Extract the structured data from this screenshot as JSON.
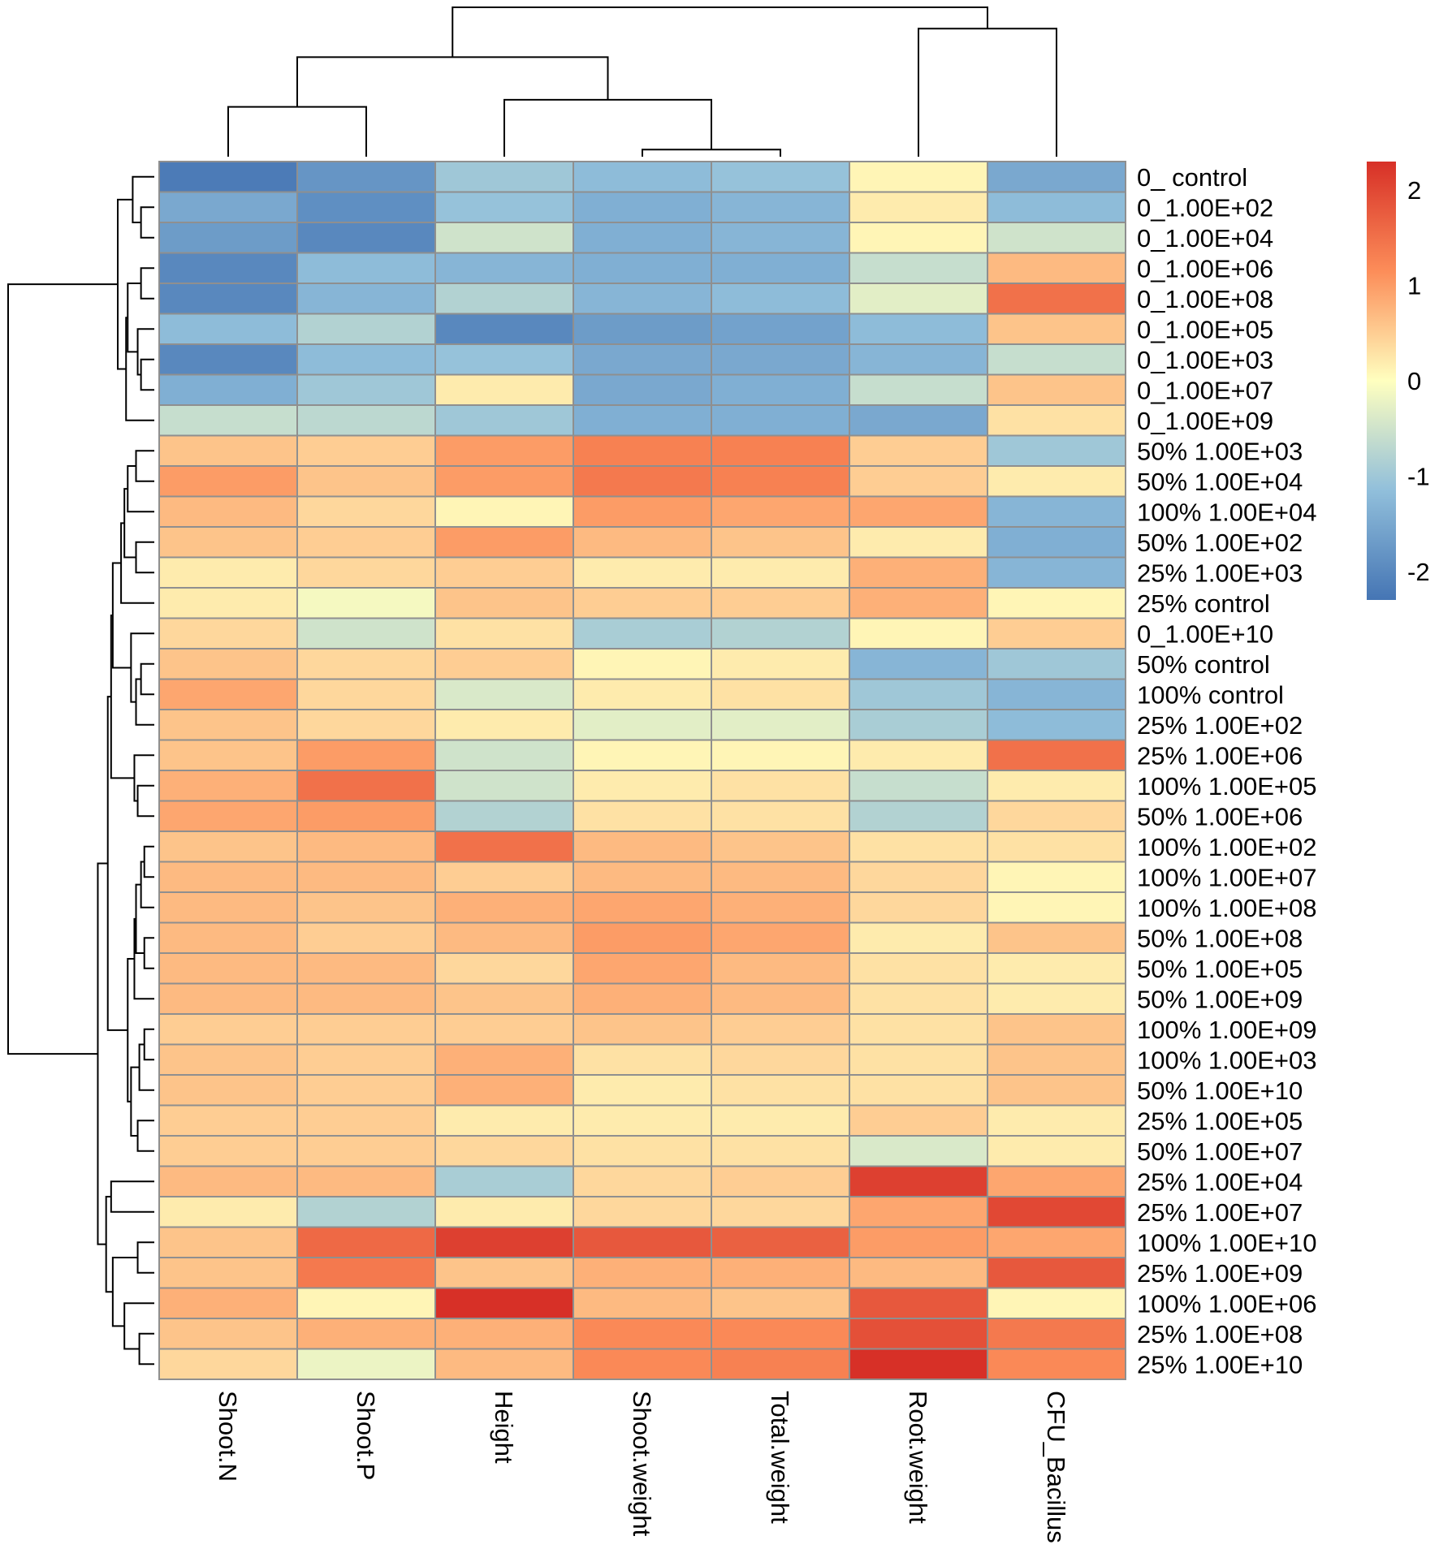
{
  "chart_data": {
    "type": "heatmap",
    "title": "",
    "color_scale": {
      "min": -2.3,
      "max": 2.3,
      "low_color": "#4575b4",
      "mid_color": "#ffffbf",
      "high_color": "#d73027",
      "ticks": [
        -2,
        -1,
        0,
        1,
        2
      ],
      "tick_labels": [
        "-2",
        "-1",
        "0",
        "1",
        "2"
      ]
    },
    "columns": [
      "Shoot.N",
      "Shoot.P",
      "Height",
      "Shoot.weight",
      "Total.weight",
      "Root.weight",
      "CFU_Bacillus"
    ],
    "rows": [
      "0_ control",
      "0_1.00E+02",
      "0_1.00E+04",
      "0_1.00E+06",
      "0_1.00E+08",
      "0_1.00E+05",
      "0_1.00E+03",
      "0_1.00E+07",
      "0_1.00E+09",
      "50% 1.00E+03",
      "50% 1.00E+04",
      "100% 1.00E+04",
      "50% 1.00E+02",
      "25% 1.00E+03",
      "25% control",
      "0_1.00E+10",
      "50% control",
      "100% control",
      "25% 1.00E+02",
      "25% 1.00E+06",
      "100% 1.00E+05",
      "50% 1.00E+06",
      "100% 1.00E+02",
      "100% 1.00E+07",
      "100% 1.00E+08",
      "50% 1.00E+08",
      "50% 1.00E+05",
      "50% 1.00E+09",
      "100% 1.00E+09",
      "100% 1.00E+03",
      "50% 1.00E+10",
      "25% 1.00E+05",
      "50% 1.00E+07",
      "25% 1.00E+04",
      "25% 1.00E+07",
      "100% 1.00E+10",
      "25% 1.00E+09",
      "100% 1.00E+06",
      "25% 1.00E+08",
      "25% 1.00E+10"
    ],
    "values": [
      [
        -2.2,
        -1.8,
        -1.0,
        -1.2,
        -1.1,
        0.1,
        -1.5
      ],
      [
        -1.5,
        -1.9,
        -1.1,
        -1.4,
        -1.3,
        0.2,
        -1.2
      ],
      [
        -1.7,
        -2.0,
        -0.5,
        -1.4,
        -1.3,
        0.1,
        -0.5
      ],
      [
        -2.0,
        -1.2,
        -1.3,
        -1.4,
        -1.4,
        -0.6,
        0.7
      ],
      [
        -2.0,
        -1.3,
        -0.8,
        -1.3,
        -1.2,
        -0.3,
        1.5
      ],
      [
        -1.2,
        -0.8,
        -2.0,
        -1.7,
        -1.6,
        -1.2,
        0.6
      ],
      [
        -2.0,
        -1.2,
        -1.1,
        -1.5,
        -1.5,
        -1.3,
        -0.6
      ],
      [
        -1.4,
        -1.0,
        0.2,
        -1.5,
        -1.4,
        -0.6,
        0.6
      ],
      [
        -0.6,
        -0.7,
        -1.0,
        -1.4,
        -1.4,
        -1.5,
        0.3
      ],
      [
        0.6,
        0.5,
        1.0,
        1.3,
        1.3,
        0.5,
        -1.0
      ],
      [
        1.0,
        0.6,
        1.0,
        1.4,
        1.3,
        0.5,
        0.2
      ],
      [
        0.7,
        0.4,
        0.1,
        1.0,
        0.9,
        0.9,
        -1.3
      ],
      [
        0.6,
        0.5,
        1.0,
        0.7,
        0.6,
        0.2,
        -1.4
      ],
      [
        0.2,
        0.4,
        0.5,
        0.2,
        0.2,
        0.8,
        -1.3
      ],
      [
        0.2,
        -0.1,
        0.6,
        0.5,
        0.5,
        0.8,
        0.1
      ],
      [
        0.4,
        -0.5,
        0.3,
        -0.9,
        -0.8,
        0.1,
        0.5
      ],
      [
        0.6,
        0.4,
        0.5,
        0.1,
        0.2,
        -1.3,
        -1.0
      ],
      [
        0.9,
        0.4,
        -0.4,
        0.2,
        0.3,
        -1.0,
        -1.3
      ],
      [
        0.6,
        0.4,
        0.2,
        -0.3,
        -0.3,
        -0.9,
        -1.2
      ],
      [
        0.6,
        1.0,
        -0.5,
        0.1,
        0.1,
        0.2,
        1.5
      ],
      [
        0.8,
        1.5,
        -0.5,
        0.2,
        0.3,
        -0.6,
        0.2
      ],
      [
        0.9,
        1.0,
        -0.8,
        0.3,
        0.3,
        -0.8,
        0.4
      ],
      [
        0.6,
        0.7,
        1.5,
        0.7,
        0.6,
        0.3,
        0.3
      ],
      [
        0.7,
        0.7,
        0.5,
        0.7,
        0.7,
        0.4,
        0.1
      ],
      [
        0.7,
        0.6,
        0.8,
        0.9,
        0.8,
        0.4,
        0.1
      ],
      [
        0.7,
        0.5,
        0.7,
        1.0,
        0.9,
        0.2,
        0.6
      ],
      [
        0.7,
        0.7,
        0.4,
        0.9,
        0.7,
        0.3,
        0.2
      ],
      [
        0.7,
        0.7,
        0.6,
        0.8,
        0.7,
        0.3,
        0.2
      ],
      [
        0.5,
        0.5,
        0.5,
        0.6,
        0.5,
        0.3,
        0.6
      ],
      [
        0.6,
        0.5,
        0.8,
        0.3,
        0.4,
        0.3,
        0.6
      ],
      [
        0.6,
        0.5,
        0.8,
        0.2,
        0.3,
        0.3,
        0.6
      ],
      [
        0.5,
        0.5,
        0.2,
        0.2,
        0.2,
        0.5,
        0.2
      ],
      [
        0.5,
        0.5,
        0.4,
        0.3,
        0.3,
        -0.4,
        0.2
      ],
      [
        0.7,
        0.7,
        -0.9,
        0.4,
        0.5,
        2.1,
        0.9
      ],
      [
        0.2,
        -0.8,
        0.2,
        0.4,
        0.4,
        0.9,
        2.0
      ],
      [
        0.6,
        1.6,
        2.1,
        1.8,
        1.7,
        1.0,
        0.9
      ],
      [
        0.6,
        1.4,
        0.6,
        0.8,
        0.8,
        0.7,
        1.8
      ],
      [
        0.8,
        0.1,
        2.3,
        0.7,
        0.6,
        1.8,
        0.1
      ],
      [
        0.6,
        0.8,
        0.8,
        1.2,
        1.2,
        1.9,
        1.4
      ],
      [
        0.4,
        -0.2,
        0.7,
        1.2,
        1.3,
        2.3,
        1.2
      ]
    ],
    "row_dendrogram": {
      "merges": [
        [
          -2,
          -3
        ],
        [
          -4,
          -5
        ],
        [
          -7,
          -8
        ],
        [
          -1,
          1
        ],
        [
          -6,
          3
        ],
        [
          2,
          5
        ],
        [
          -9,
          6
        ],
        [
          4,
          7
        ],
        [
          -10,
          -11
        ],
        [
          -12,
          9
        ],
        [
          -13,
          -14
        ],
        [
          10,
          11
        ],
        [
          -15,
          12
        ],
        [
          -17,
          -18
        ],
        [
          -19,
          14
        ],
        [
          -16,
          15
        ],
        [
          13,
          16
        ],
        [
          -21,
          -22
        ],
        [
          -20,
          18
        ],
        [
          17,
          19
        ],
        [
          -23,
          -24
        ],
        [
          -25,
          21
        ],
        [
          -26,
          -27
        ],
        [
          22,
          23
        ],
        [
          -28,
          24
        ],
        [
          -29,
          -30
        ],
        [
          26,
          -31
        ],
        [
          -32,
          -33
        ],
        [
          27,
          28
        ],
        [
          25,
          29
        ],
        [
          20,
          30
        ],
        [
          -34,
          -35
        ],
        [
          -36,
          -37
        ],
        [
          -39,
          -40
        ],
        [
          -38,
          34
        ],
        [
          33,
          35
        ],
        [
          32,
          36
        ],
        [
          31,
          37
        ],
        [
          8,
          38
        ]
      ],
      "heights": [
        0.4,
        0.4,
        0.4,
        0.65,
        0.5,
        0.8,
        0.85,
        1.1,
        0.55,
        0.8,
        0.55,
        0.9,
        1.0,
        0.4,
        0.55,
        0.7,
        1.25,
        0.5,
        0.6,
        1.3,
        0.3,
        0.4,
        0.3,
        0.55,
        0.6,
        0.3,
        0.45,
        0.5,
        0.7,
        0.8,
        1.4,
        1.3,
        0.5,
        0.45,
        0.9,
        1.25,
        1.45,
        1.7,
        4.4
      ]
    },
    "col_dendrogram": {
      "merges": [
        [
          -1,
          -2
        ],
        [
          -4,
          -5
        ],
        [
          -3,
          2
        ],
        [
          1,
          3
        ],
        [
          -6,
          -7
        ],
        [
          4,
          5
        ]
      ],
      "heights": [
        0.7,
        0.1,
        0.8,
        1.4,
        1.8,
        2.1
      ]
    }
  }
}
